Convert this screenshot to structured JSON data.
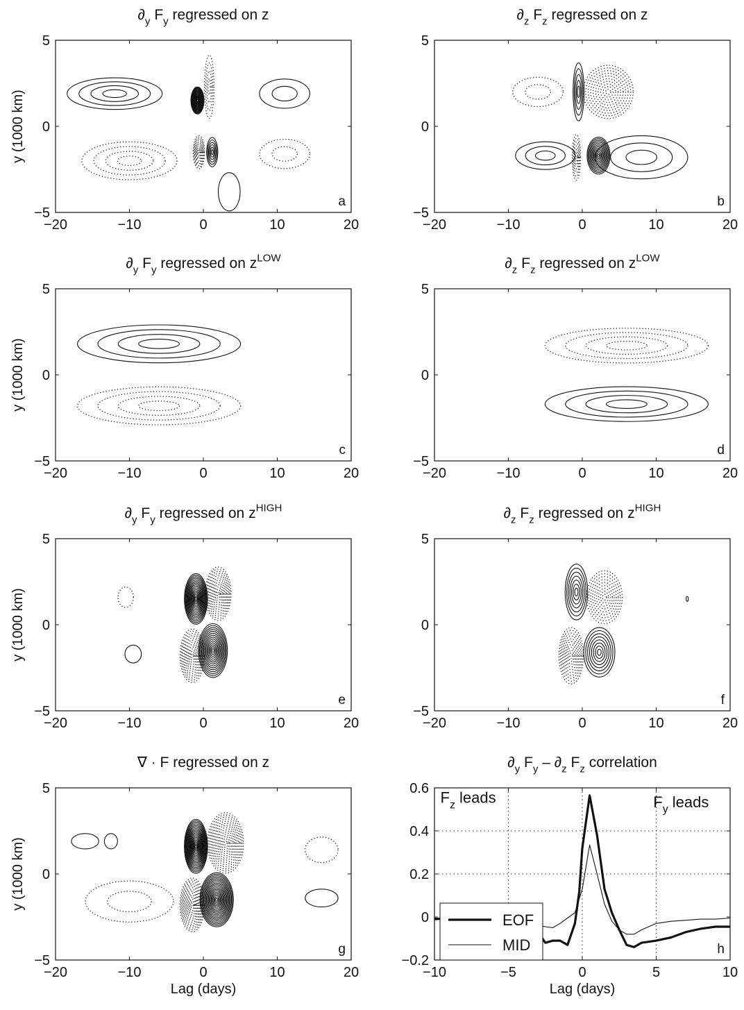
{
  "chart_data": [
    {
      "id": "a",
      "type": "contour",
      "title": "∂y Fy regressed on z",
      "title_parts": [
        {
          "t": "∂"
        },
        {
          "t": "y",
          "sub": true
        },
        {
          "t": " F"
        },
        {
          "t": "y",
          "sub": true
        },
        {
          "t": " regressed on z"
        }
      ],
      "panel_label": "a",
      "ylabel": "y (1000 km)",
      "xlabel": "",
      "xlim": [
        -20,
        20
      ],
      "ylim": [
        -5,
        5
      ],
      "xticks": [
        -20,
        -10,
        0,
        10,
        20
      ],
      "yticks": [
        -5,
        0,
        5
      ],
      "features": [
        {
          "sign": "pos",
          "x0": -0.8,
          "y0": 1.5,
          "sx": 0.9,
          "sy": 0.8,
          "levels": 18
        },
        {
          "sign": "pos",
          "x0": -12,
          "y0": 1.9,
          "sx": 7,
          "sy": 1.0,
          "levels": 4
        },
        {
          "sign": "pos",
          "x0": 11,
          "y0": 1.9,
          "sx": 4,
          "sy": 1.0,
          "levels": 2
        },
        {
          "sign": "neg",
          "x0": 0.8,
          "y0": 2.3,
          "sx": 0.7,
          "sy": 2.0,
          "levels": 4
        },
        {
          "sign": "neg",
          "x0": -0.6,
          "y0": -1.5,
          "sx": 0.8,
          "sy": 1.0,
          "levels": 10
        },
        {
          "sign": "neg",
          "x0": -10,
          "y0": -2.0,
          "sx": 7,
          "sy": 1.2,
          "levels": 4
        },
        {
          "sign": "neg",
          "x0": 11,
          "y0": -1.6,
          "sx": 4,
          "sy": 1.0,
          "levels": 2
        },
        {
          "sign": "pos",
          "x0": 1.2,
          "y0": -1.5,
          "sx": 0.8,
          "sy": 0.9,
          "levels": 6
        },
        {
          "sign": "pos",
          "x0": 3.5,
          "y0": -3.8,
          "sx": 2.0,
          "sy": 1.5,
          "levels": 1
        }
      ]
    },
    {
      "id": "b",
      "type": "contour",
      "title": "∂z Fz regressed on z",
      "title_parts": [
        {
          "t": "∂"
        },
        {
          "t": "z",
          "sub": true
        },
        {
          "t": " F"
        },
        {
          "t": "z",
          "sub": true
        },
        {
          "t": " regressed on z"
        }
      ],
      "panel_label": "b",
      "ylabel": "",
      "xlabel": "",
      "xlim": [
        -20,
        20
      ],
      "ylim": [
        -5,
        5
      ],
      "xticks": [
        -20,
        -10,
        0,
        10,
        20
      ],
      "yticks": [
        -5,
        0,
        5
      ],
      "features": [
        {
          "sign": "pos",
          "x0": -0.5,
          "y0": 2.0,
          "sx": 0.8,
          "sy": 1.8,
          "levels": 5
        },
        {
          "sign": "neg",
          "x0": 3.5,
          "y0": 2.0,
          "sx": 3.5,
          "sy": 1.6,
          "levels": 10
        },
        {
          "sign": "neg",
          "x0": -6,
          "y0": 2.0,
          "sx": 4,
          "sy": 1.0,
          "levels": 2
        },
        {
          "sign": "neg",
          "x0": -0.8,
          "y0": -1.8,
          "sx": 0.6,
          "sy": 1.4,
          "levels": 6
        },
        {
          "sign": "pos",
          "x0": 2.2,
          "y0": -1.7,
          "sx": 1.6,
          "sy": 1.1,
          "levels": 12
        },
        {
          "sign": "pos",
          "x0": -5,
          "y0": -1.7,
          "sx": 4.5,
          "sy": 0.9,
          "levels": 3
        },
        {
          "sign": "pos",
          "x0": 8,
          "y0": -1.8,
          "sx": 7,
          "sy": 1.4,
          "levels": 3
        }
      ]
    },
    {
      "id": "c",
      "type": "contour",
      "title": "∂y Fy regressed on zLOW",
      "title_parts": [
        {
          "t": "∂"
        },
        {
          "t": "y",
          "sub": true
        },
        {
          "t": " F"
        },
        {
          "t": "y",
          "sub": true
        },
        {
          "t": " regressed on z"
        },
        {
          "t": "LOW",
          "sup": true
        }
      ],
      "panel_label": "c",
      "ylabel": "y (1000 km)",
      "xlabel": "",
      "xlim": [
        -20,
        20
      ],
      "ylim": [
        -5,
        5
      ],
      "xticks": [
        -20,
        -10,
        0,
        10,
        20
      ],
      "yticks": [
        -5,
        0,
        5
      ],
      "features": [
        {
          "sign": "pos",
          "x0": -6,
          "y0": 1.8,
          "sx": 12,
          "sy": 1.2,
          "levels": 4
        },
        {
          "sign": "neg",
          "x0": -6,
          "y0": -1.8,
          "sx": 12,
          "sy": 1.2,
          "levels": 4
        }
      ]
    },
    {
      "id": "d",
      "type": "contour",
      "title": "∂z Fz regressed on zLOW",
      "title_parts": [
        {
          "t": "∂"
        },
        {
          "t": "z",
          "sub": true
        },
        {
          "t": " F"
        },
        {
          "t": "z",
          "sub": true
        },
        {
          "t": " regressed on z"
        },
        {
          "t": "LOW",
          "sup": true
        }
      ],
      "panel_label": "d",
      "ylabel": "",
      "xlabel": "",
      "xlim": [
        -20,
        20
      ],
      "ylim": [
        -5,
        5
      ],
      "xticks": [
        -20,
        -10,
        0,
        10,
        20
      ],
      "yticks": [
        -5,
        0,
        5
      ],
      "features": [
        {
          "sign": "neg",
          "x0": 6,
          "y0": 1.7,
          "sx": 12,
          "sy": 1.1,
          "levels": 4
        },
        {
          "sign": "pos",
          "x0": 6,
          "y0": -1.7,
          "sx": 12,
          "sy": 1.1,
          "levels": 4
        }
      ]
    },
    {
      "id": "e",
      "type": "contour",
      "title": "∂y Fy regressed on zHIGH",
      "title_parts": [
        {
          "t": "∂"
        },
        {
          "t": "y",
          "sub": true
        },
        {
          "t": " F"
        },
        {
          "t": "y",
          "sub": true
        },
        {
          "t": " regressed on z"
        },
        {
          "t": "HIGH",
          "sup": true
        }
      ],
      "panel_label": "e",
      "ylabel": "y (1000 km)",
      "xlabel": "",
      "xlim": [
        -20,
        20
      ],
      "ylim": [
        -5,
        5
      ],
      "xticks": [
        -20,
        -10,
        0,
        10,
        20
      ],
      "yticks": [
        -5,
        0,
        5
      ],
      "features": [
        {
          "sign": "pos",
          "x0": -1.0,
          "y0": 1.5,
          "sx": 1.6,
          "sy": 1.5,
          "levels": 16
        },
        {
          "sign": "neg",
          "x0": 2.0,
          "y0": 1.8,
          "sx": 1.8,
          "sy": 1.6,
          "levels": 12
        },
        {
          "sign": "neg",
          "x0": -10.5,
          "y0": 1.6,
          "sx": 1.4,
          "sy": 0.8,
          "levels": 1
        },
        {
          "sign": "neg",
          "x0": -1.5,
          "y0": -1.8,
          "sx": 1.7,
          "sy": 1.6,
          "levels": 12
        },
        {
          "sign": "pos",
          "x0": 1.3,
          "y0": -1.5,
          "sx": 2.0,
          "sy": 1.6,
          "levels": 14
        },
        {
          "sign": "pos",
          "x0": -9.5,
          "y0": -1.7,
          "sx": 1.5,
          "sy": 0.7,
          "levels": 1
        }
      ]
    },
    {
      "id": "f",
      "type": "contour",
      "title": "∂z Fz regressed on zHIGH",
      "title_parts": [
        {
          "t": "∂"
        },
        {
          "t": "z",
          "sub": true
        },
        {
          "t": " F"
        },
        {
          "t": "z",
          "sub": true
        },
        {
          "t": " regressed on z"
        },
        {
          "t": "HIGH",
          "sup": true
        }
      ],
      "panel_label": "f",
      "ylabel": "",
      "xlabel": "",
      "xlim": [
        -20,
        20
      ],
      "ylim": [
        -5,
        5
      ],
      "xticks": [
        -20,
        -10,
        0,
        10,
        20
      ],
      "yticks": [
        -5,
        0,
        5
      ],
      "features": [
        {
          "sign": "pos",
          "x0": -0.8,
          "y0": 1.9,
          "sx": 1.6,
          "sy": 1.7,
          "levels": 7
        },
        {
          "sign": "neg",
          "x0": 3.0,
          "y0": 1.6,
          "sx": 2.5,
          "sy": 1.6,
          "levels": 9
        },
        {
          "sign": "pos",
          "x0": 14.2,
          "y0": 1.5,
          "sx": 0.2,
          "sy": 0.2,
          "levels": 1
        },
        {
          "sign": "neg",
          "x0": -1.5,
          "y0": -1.8,
          "sx": 1.7,
          "sy": 1.7,
          "levels": 10
        },
        {
          "sign": "pos",
          "x0": 2.3,
          "y0": -1.6,
          "sx": 2.2,
          "sy": 1.5,
          "levels": 8
        }
      ]
    },
    {
      "id": "g",
      "type": "contour",
      "title": "∇ · F regressed on z",
      "title_parts": [
        {
          "t": "∇ · F regressed on z"
        }
      ],
      "panel_label": "g",
      "ylabel": "y (1000 km)",
      "xlabel": "Lag (days)",
      "xlim": [
        -20,
        20
      ],
      "ylim": [
        -5,
        5
      ],
      "xticks": [
        -20,
        -10,
        0,
        10,
        20
      ],
      "yticks": [
        -5,
        0,
        5
      ],
      "features": [
        {
          "sign": "pos",
          "x0": -1.0,
          "y0": 1.6,
          "sx": 1.6,
          "sy": 1.6,
          "levels": 18
        },
        {
          "sign": "pos",
          "x0": -16,
          "y0": 1.9,
          "sx": 2.5,
          "sy": 0.6,
          "levels": 1
        },
        {
          "sign": "pos",
          "x0": -12.5,
          "y0": 1.9,
          "sx": 1.2,
          "sy": 0.6,
          "levels": 1
        },
        {
          "sign": "neg",
          "x0": 3.0,
          "y0": 1.8,
          "sx": 2.5,
          "sy": 1.8,
          "levels": 14
        },
        {
          "sign": "neg",
          "x0": 16,
          "y0": 1.4,
          "sx": 3,
          "sy": 1.0,
          "levels": 1
        },
        {
          "sign": "neg",
          "x0": -1.5,
          "y0": -1.8,
          "sx": 1.7,
          "sy": 1.6,
          "levels": 14
        },
        {
          "sign": "neg",
          "x0": -10,
          "y0": -1.6,
          "sx": 7,
          "sy": 1.4,
          "levels": 2
        },
        {
          "sign": "pos",
          "x0": 1.8,
          "y0": -1.5,
          "sx": 2.3,
          "sy": 1.6,
          "levels": 18
        },
        {
          "sign": "pos",
          "x0": 16,
          "y0": -1.4,
          "sx": 3,
          "sy": 0.7,
          "levels": 1
        }
      ]
    },
    {
      "id": "h",
      "type": "line",
      "title": "∂y Fy – ∂z Fz correlation",
      "title_parts": [
        {
          "t": "∂"
        },
        {
          "t": "y",
          "sub": true
        },
        {
          "t": " F"
        },
        {
          "t": "y",
          "sub": true
        },
        {
          "t": " – ∂"
        },
        {
          "t": "z",
          "sub": true
        },
        {
          "t": " F"
        },
        {
          "t": "z",
          "sub": true
        },
        {
          "t": " correlation"
        }
      ],
      "panel_label": "h",
      "ylabel": "",
      "xlabel": "Lag (days)",
      "xlim": [
        -10,
        10
      ],
      "ylim": [
        -0.2,
        0.6
      ],
      "xticks": [
        -10,
        -5,
        0,
        5,
        10
      ],
      "yticks": [
        -0.2,
        0,
        0.2,
        0.4,
        0.6
      ],
      "xtick_labels": [
        "−10",
        "−5",
        "0",
        "5",
        "10"
      ],
      "ytick_labels": [
        "−0.2",
        "0",
        "0.2",
        "0.4",
        "0.6"
      ],
      "grid": true,
      "grid_x": [
        -5,
        0,
        5
      ],
      "grid_y": [
        0.2,
        0.4
      ],
      "legend_position": "middle-left",
      "annotations": [
        {
          "parts": [
            {
              "t": "F"
            },
            {
              "t": "z",
              "sub": true
            },
            {
              "t": " leads"
            }
          ],
          "x": -9.6,
          "y": 0.53
        },
        {
          "parts": [
            {
              "t": "F"
            },
            {
              "t": "y",
              "sub": true
            },
            {
              "t": " leads"
            }
          ],
          "x": 4.8,
          "y": 0.51
        }
      ],
      "series": [
        {
          "name": "EOF",
          "width": 3.2,
          "x": [
            -10,
            -9,
            -8,
            -7,
            -6,
            -5,
            -4,
            -3,
            -2.5,
            -2,
            -1.5,
            -1,
            -0.5,
            -0.2,
            0,
            0.5,
            1,
            1.5,
            2,
            2.5,
            3,
            3.5,
            4,
            5,
            6,
            7,
            8,
            9,
            10
          ],
          "y": [
            -0.01,
            -0.005,
            -0.005,
            -0.01,
            -0.02,
            -0.03,
            -0.04,
            -0.07,
            -0.12,
            -0.11,
            -0.11,
            -0.13,
            -0.03,
            0.12,
            0.32,
            0.565,
            0.38,
            0.13,
            0.02,
            -0.06,
            -0.13,
            -0.14,
            -0.12,
            -0.11,
            -0.095,
            -0.07,
            -0.055,
            -0.045,
            -0.045
          ]
        },
        {
          "name": "MID",
          "width": 1.1,
          "x": [
            -10,
            -9,
            -8,
            -7,
            -6,
            -5,
            -4,
            -3,
            -2,
            -1.5,
            -1,
            -0.5,
            0,
            0.5,
            1,
            1.5,
            2,
            2.5,
            3,
            3.5,
            4,
            5,
            6,
            7,
            8,
            9,
            10
          ],
          "y": [
            -0.005,
            -0.005,
            -0.005,
            -0.01,
            -0.02,
            -0.025,
            -0.03,
            -0.04,
            -0.05,
            -0.03,
            -0.005,
            0.02,
            0.13,
            0.335,
            0.2,
            0.06,
            -0.02,
            -0.06,
            -0.08,
            -0.08,
            -0.06,
            -0.03,
            -0.02,
            -0.015,
            -0.01,
            -0.01,
            -0.005
          ]
        }
      ]
    }
  ]
}
